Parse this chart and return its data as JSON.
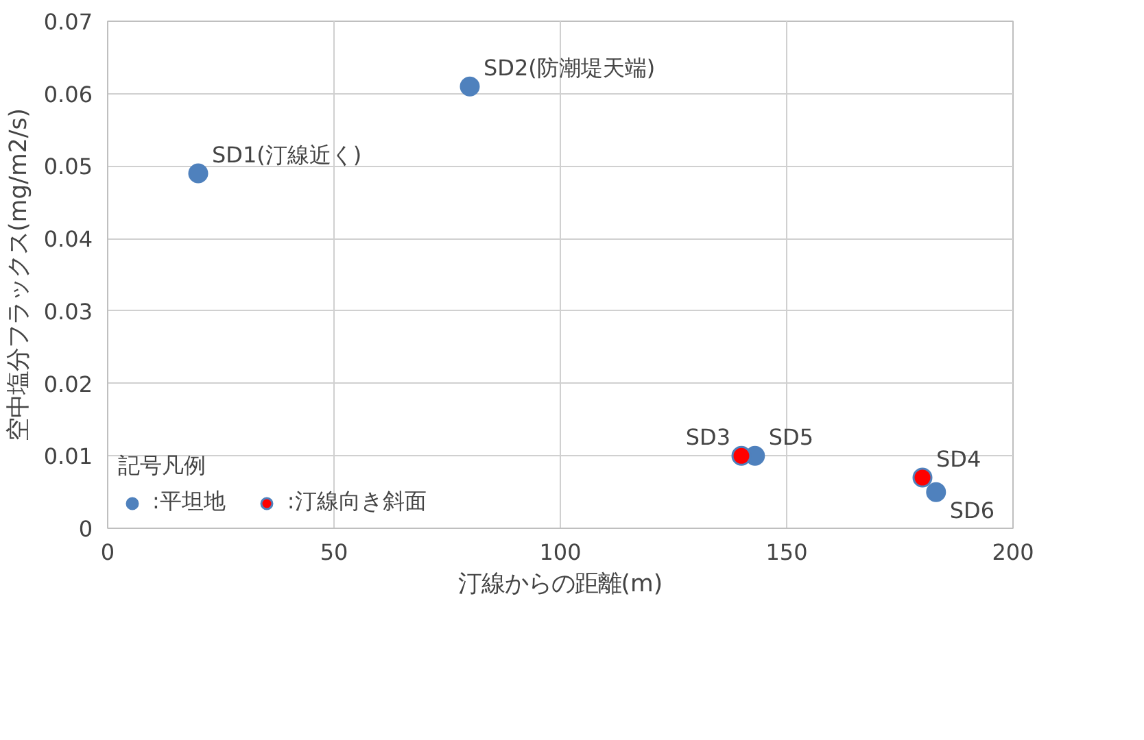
{
  "chart_data": {
    "type": "scatter",
    "xlabel": "汀線からの距離(m)",
    "ylabel": "空中塩分フラックス(mg/m2/s)",
    "legend_title": "記号凡例",
    "legend": "bottom left",
    "grid": true,
    "marker": "circle",
    "xlim": [
      0,
      200
    ],
    "xticks": [
      0,
      50,
      100,
      150,
      200
    ],
    "ylim": [
      0,
      0.07
    ],
    "yticks": [
      0,
      0.01,
      0.02,
      0.03,
      0.04,
      0.05,
      0.06,
      0.07
    ],
    "series": [
      {
        "name": ":平坦地",
        "color": "#4f81bd",
        "x": [
          20,
          80,
          143,
          183
        ],
        "values": [
          0.049,
          0.061,
          0.01,
          0.005
        ]
      },
      {
        "name": ":汀線向き斜面",
        "color": "#ff0000",
        "x": [
          140,
          180
        ],
        "values": [
          0.01,
          0.007
        ]
      }
    ],
    "annotations": [
      {
        "text": "SD1(汀線近く)",
        "x": 20,
        "y": 0.049
      },
      {
        "text": "SD2(防潮堤天端)",
        "x": 80,
        "y": 0.061
      },
      {
        "text": "SD3",
        "x": 140,
        "y": 0.01
      },
      {
        "text": "SD5",
        "x": 143,
        "y": 0.01
      },
      {
        "text": "SD4",
        "x": 180,
        "y": 0.007
      },
      {
        "text": "SD6",
        "x": 183,
        "y": 0.005
      }
    ]
  }
}
